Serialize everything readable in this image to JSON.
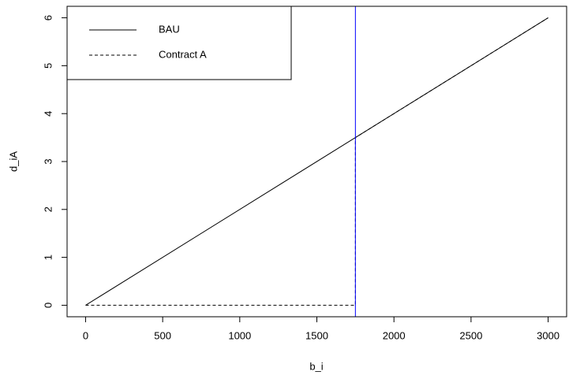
{
  "chart_data": {
    "type": "line",
    "xlabel": "b_i",
    "ylabel": "d_iA",
    "series": [
      {
        "name": "BAU",
        "color": "#000000",
        "dash": false,
        "x": [
          0,
          3000
        ],
        "values": [
          0,
          6
        ]
      },
      {
        "name": "Contract A",
        "color": "#000000",
        "dash": true,
        "x": [
          0,
          1750,
          1750,
          3000
        ],
        "values": [
          0,
          0,
          3.5,
          6
        ]
      }
    ],
    "vline": {
      "x": 1750,
      "color": "#0000ff"
    },
    "xlim": [
      -120,
      3120
    ],
    "xticks": [
      0,
      500,
      1000,
      1500,
      2000,
      2500,
      3000
    ],
    "ylim": [
      -0.24,
      6.24
    ],
    "yticks": [
      0,
      1,
      2,
      3,
      4,
      5,
      6
    ],
    "legend": "topleft"
  }
}
